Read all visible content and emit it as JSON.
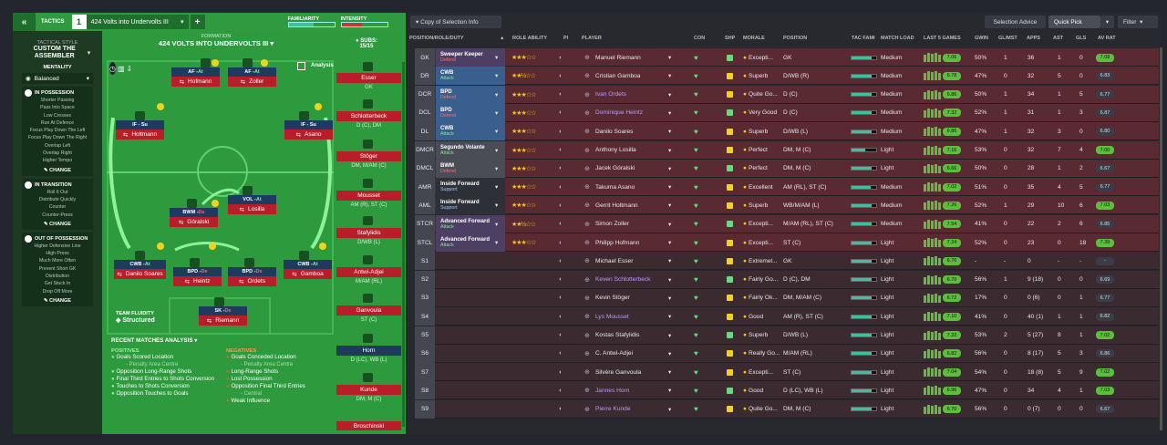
{
  "toolbar": {
    "tactics_label": "TACTICS",
    "slot": "1",
    "tactic_name": "424 Volts into Undervolts III",
    "familiarity_label": "FAMILIARITY",
    "intensity_label": "INTENSITY"
  },
  "left_panel": {
    "style_label": "TACTICAL STYLE",
    "style_name": "CUSTOM THE ASSEMBLER",
    "mentality_label": "MENTALITY",
    "mentality_value": "Balanced",
    "in_possession": {
      "title": "IN POSSESSION",
      "items": [
        "Shorter Passing",
        "Pass Into Space",
        "Low Crosses",
        "Run At Defence",
        "Focus Play Down The Left",
        "Focus Play Down The Right",
        "Overlap Left",
        "Overlap Right",
        "Higher Tempo"
      ],
      "change": "CHANGE"
    },
    "in_transition": {
      "title": "IN TRANSITION",
      "items": [
        "Roll It Out",
        "Distribute Quickly",
        "Counter",
        "Counter-Press"
      ],
      "change": "CHANGE"
    },
    "out_of_possession": {
      "title": "OUT OF POSSESSION",
      "items": [
        "Higher Defensive Line",
        "High Press",
        "Much More Often",
        "Prevent Short GK",
        "Distribution",
        "Get Stuck In",
        "Drop Off More"
      ],
      "change": "CHANGE"
    }
  },
  "pitch": {
    "formation_label": "FORMATION",
    "formation_name": "424 VOLTS INTO UNDERVOLTS III",
    "subs_label": "SUBS:",
    "subs_count": "15/15",
    "analysis": "Analysis",
    "team_fluidity_label": "TEAM FLUIDITY",
    "team_fluidity": "Structured",
    "players": [
      {
        "role": "AF - ",
        "duty": "At",
        "name": "Hofmann"
      },
      {
        "role": "AF - ",
        "duty": "At",
        "name": "Zoller"
      },
      {
        "role": "IF - Su",
        "duty": "",
        "name": "Holtmann"
      },
      {
        "role": "IF - Su",
        "duty": "",
        "name": "Asano"
      },
      {
        "role": "VOL - ",
        "duty": "At",
        "name": "Losilla"
      },
      {
        "role": "BWM - ",
        "duty": "De",
        "name": "Góralski"
      },
      {
        "role": "CWB - ",
        "duty": "At",
        "name": "Danilo Soares"
      },
      {
        "role": "BPD - ",
        "duty": "De",
        "name": "Heintz"
      },
      {
        "role": "BPD - ",
        "duty": "De",
        "name": "Ordets"
      },
      {
        "role": "CWB - ",
        "duty": "At",
        "name": "Gamboa"
      },
      {
        "role": "SK - ",
        "duty": "De",
        "name": "Riemann"
      }
    ],
    "subs": [
      {
        "name": "Esser",
        "pos": "GK"
      },
      {
        "name": "Schlotterbeck",
        "pos": "D (C), DM"
      },
      {
        "name": "Stöger",
        "pos": "DM, M/AM (C)"
      },
      {
        "name": "Mousset",
        "pos": "AM (R), ST (C)"
      },
      {
        "name": "Stafylidis",
        "pos": "D/WB (L)"
      },
      {
        "name": "Antwi-Adjei",
        "pos": "M/AM (RL)"
      },
      {
        "name": "Ganvoula",
        "pos": "ST (C)"
      },
      {
        "name": "Horn",
        "pos": "D (LC), WB (L)"
      },
      {
        "name": "Kunde",
        "pos": "DM, M (C)"
      },
      {
        "name": "Broschinski",
        "pos": ""
      }
    ],
    "recent_matches": "RECENT MATCHES ANALYSIS",
    "positives_label": "POSITIVES",
    "positives": [
      {
        "t": "Goals Scored Location",
        "s": "- Penalty Area Centre"
      },
      {
        "t": "Opposition Long-Range Shots",
        "s": ""
      },
      {
        "t": "Final Third Entries to Shots Conversion",
        "s": ""
      },
      {
        "t": "Touches to Shots Conversion",
        "s": ""
      },
      {
        "t": "Opposition Touches to Goals",
        "s": ""
      }
    ],
    "negatives_label": "NEGATIVES",
    "negatives": [
      {
        "t": "Goals Conceded Location",
        "s": "- Penalty Area Centre"
      },
      {
        "t": "Long-Range Shots",
        "s": ""
      },
      {
        "t": "Lost Possession",
        "s": ""
      },
      {
        "t": "Opposition Final Third Entries",
        "s": "- Central"
      },
      {
        "t": "Weak Influence",
        "s": ""
      }
    ]
  },
  "right_panel": {
    "selection_dropdown": "Copy of Selection Info",
    "selection_advice": "Selection Advice",
    "quick_pick": "Quick Pick",
    "filter": "Filter",
    "headers": [
      "POSITION/ROLE/DUTY",
      "ROLE ABILITY",
      "PI",
      "PLAYER",
      "CON",
      "SHP",
      "MORALE",
      "POSITION",
      "TAC FAMI",
      "MATCH LOAD",
      "LAST 5 GAMES",
      "GWIN",
      "GL/MST",
      "APPS",
      "AST",
      "GLS",
      "AV RAT"
    ],
    "rows": [
      {
        "slot": "GK",
        "role": "Sweeper Keeper",
        "duty": "Defend",
        "stars": "★★★☆☆",
        "name": "Manuel Riemann",
        "morale": "Excepti...",
        "pos": "GK",
        "load": "Medium",
        "form": "7.06",
        "gwin": "50%",
        "glmst": "1",
        "apps": "36",
        "ast": "1",
        "gls": "0",
        "avrat": "7.08",
        "color": "#4c3f63",
        "fam": 0.82
      },
      {
        "slot": "DR",
        "role": "CWB",
        "duty": "Attack",
        "stars": "★★½☆☆",
        "name": "Cristian Gamboa",
        "morale": "Superb",
        "pos": "D/WB (R)",
        "load": "Medium",
        "form": "6.78",
        "gwin": "47%",
        "glmst": "0",
        "apps": "32",
        "ast": "5",
        "gls": "0",
        "avrat": "6.83",
        "color": "#3a5f8f",
        "fam": 0.8
      },
      {
        "slot": "DCR",
        "role": "BPD",
        "duty": "Defend",
        "stars": "★★★☆☆",
        "name": "Ivan Ordets",
        "morale": "Quite Go...",
        "pos": "D (C)",
        "load": "Medium",
        "form": "6.86",
        "gwin": "50%",
        "glmst": "1",
        "apps": "34",
        "ast": "1",
        "gls": "5",
        "avrat": "6.77",
        "color": "#3a5f8f",
        "fam": 0.8
      },
      {
        "slot": "DCL",
        "role": "BPD",
        "duty": "Defend",
        "stars": "★★★☆☆",
        "name": "Dominique Heintz",
        "morale": "Very Good",
        "pos": "D (C)",
        "load": "Medium",
        "form": "7.32",
        "gwin": "52%",
        "glmst": "1",
        "apps": "31",
        "ast": "1",
        "gls": "3",
        "avrat": "6.87",
        "color": "#3a5f8f",
        "fam": 0.82
      },
      {
        "slot": "DL",
        "role": "CWB",
        "duty": "Attack",
        "stars": "★★★☆☆",
        "name": "Danilo Soares",
        "morale": "Superb",
        "pos": "D/WB (L)",
        "load": "Medium",
        "form": "6.86",
        "gwin": "47%",
        "glmst": "1",
        "apps": "32",
        "ast": "3",
        "gls": "0",
        "avrat": "6.80",
        "color": "#3a5f8f",
        "fam": 0.8
      },
      {
        "slot": "DMCR",
        "role": "Segundo Volante",
        "duty": "Attack",
        "stars": "★★★☆☆",
        "name": "Anthony Losilla",
        "morale": "Perfect",
        "pos": "DM, M (C)",
        "load": "Light",
        "form": "7.16",
        "gwin": "53%",
        "glmst": "0",
        "apps": "32",
        "ast": "7",
        "gls": "4",
        "avrat": "7.00",
        "color": "#4a4d55",
        "fam": 0.55
      },
      {
        "slot": "DMCL",
        "role": "BWM",
        "duty": "Defend",
        "stars": "★★★☆☆",
        "name": "Jacek Góralski",
        "morale": "Perfect",
        "pos": "DM, M (C)",
        "load": "Light",
        "form": "6.66",
        "gwin": "50%",
        "glmst": "0",
        "apps": "28",
        "ast": "1",
        "gls": "2",
        "avrat": "6.67",
        "color": "#4a4d55",
        "fam": 0.8
      },
      {
        "slot": "AMR",
        "role": "Inside Forward",
        "duty": "Support",
        "stars": "★★★☆☆",
        "name": "Takuma Asano",
        "morale": "Excellent",
        "pos": "AM (RL), ST (C)",
        "load": "Medium",
        "form": "7.02",
        "gwin": "51%",
        "glmst": "0",
        "apps": "35",
        "ast": "4",
        "gls": "5",
        "avrat": "6.77",
        "color": "#2e3038",
        "fam": 0.78
      },
      {
        "slot": "AML",
        "role": "Inside Forward",
        "duty": "Support",
        "stars": "★★★☆☆",
        "name": "Gerrit Holtmann",
        "morale": "Superb",
        "pos": "WB/M/AM (L)",
        "load": "Medium",
        "form": "7.26",
        "gwin": "52%",
        "glmst": "1",
        "apps": "29",
        "ast": "10",
        "gls": "6",
        "avrat": "7.03",
        "color": "#2e3038",
        "fam": 0.8
      },
      {
        "slot": "STCR",
        "role": "Advanced Forward",
        "duty": "Attack",
        "stars": "★★½☆☆",
        "name": "Simon Zoller",
        "morale": "Excepti...",
        "pos": "M/AM (RL), ST (C)",
        "load": "Medium",
        "form": "7.54",
        "gwin": "41%",
        "glmst": "0",
        "apps": "22",
        "ast": "2",
        "gls": "6",
        "avrat": "6.85",
        "color": "#4c3f63",
        "fam": 0.8
      },
      {
        "slot": "STCL",
        "role": "Advanced Forward",
        "duty": "Attack",
        "stars": "★★★☆☆",
        "name": "Philipp Hofmann",
        "morale": "Excepti...",
        "pos": "ST (C)",
        "load": "Light",
        "form": "7.24",
        "gwin": "52%",
        "glmst": "0",
        "apps": "23",
        "ast": "0",
        "gls": "18",
        "avrat": "7.39",
        "color": "#4c3f63",
        "fam": 0.8
      },
      {
        "slot": "S1",
        "name": "Michael Esser",
        "morale": "Extremel...",
        "pos": "GK",
        "load": "Light",
        "form": "6.70",
        "gwin": "-",
        "glmst": "-",
        "apps": "0",
        "ast": "-",
        "gls": "-",
        "avrat": "-",
        "fam": 0.8
      },
      {
        "slot": "S2",
        "name": "Keven Schlotterbeck",
        "morale": "Fairly Go...",
        "pos": "D (C), DM",
        "load": "Light",
        "form": "6.70",
        "gwin": "56%",
        "glmst": "1",
        "apps": "9 (18)",
        "ast": "0",
        "gls": "0",
        "avrat": "6.69",
        "fam": 0.8
      },
      {
        "slot": "S3",
        "name": "Kevin Stöger",
        "morale": "Fairly Ok...",
        "pos": "DM, M/AM (C)",
        "load": "Light",
        "form": "6.72",
        "gwin": "17%",
        "glmst": "0",
        "apps": "0 (6)",
        "ast": "0",
        "gls": "1",
        "avrat": "6.77",
        "fam": 0.8
      },
      {
        "slot": "S4",
        "name": "Lys Mousset",
        "morale": "Good",
        "pos": "AM (R), ST (C)",
        "load": "Light",
        "form": "7.10",
        "gwin": "41%",
        "glmst": "0",
        "apps": "40 (1)",
        "ast": "1",
        "gls": "1",
        "avrat": "6.82",
        "fam": 0.8
      },
      {
        "slot": "S5",
        "name": "Kostas Stafylidis",
        "morale": "Superb",
        "pos": "D/WB (L)",
        "load": "Light",
        "form": "7.22",
        "gwin": "53%",
        "glmst": "2",
        "apps": "5 (27)",
        "ast": "8",
        "gls": "1",
        "avrat": "7.02",
        "fam": 0.8
      },
      {
        "slot": "S6",
        "name": "C. Antwi-Adjei",
        "morale": "Really Go...",
        "pos": "M/AM (RL)",
        "load": "Light",
        "form": "6.82",
        "gwin": "56%",
        "glmst": "0",
        "apps": "8 (17)",
        "ast": "5",
        "gls": "3",
        "avrat": "6.86",
        "fam": 0.8
      },
      {
        "slot": "S7",
        "name": "Silvère Ganvoula",
        "morale": "Excepti...",
        "pos": "ST (C)",
        "load": "Light",
        "form": "7.04",
        "gwin": "54%",
        "glmst": "0",
        "apps": "18 (8)",
        "ast": "5",
        "gls": "9",
        "avrat": "7.02",
        "fam": 0.8
      },
      {
        "slot": "S8",
        "name": "Jannes Horn",
        "morale": "Good",
        "pos": "D (LC), WB (L)",
        "load": "Light",
        "form": "6.96",
        "gwin": "47%",
        "glmst": "0",
        "apps": "34",
        "ast": "4",
        "gls": "1",
        "avrat": "7.03",
        "fam": 0.8
      },
      {
        "slot": "S9",
        "name": "Pierre Kunde",
        "morale": "Quite Go...",
        "pos": "DM, M (C)",
        "load": "Light",
        "form": "6.70",
        "gwin": "56%",
        "glmst": "0",
        "apps": "0 (7)",
        "ast": "0",
        "gls": "0",
        "avrat": "6.67",
        "fam": 0.8
      }
    ]
  }
}
